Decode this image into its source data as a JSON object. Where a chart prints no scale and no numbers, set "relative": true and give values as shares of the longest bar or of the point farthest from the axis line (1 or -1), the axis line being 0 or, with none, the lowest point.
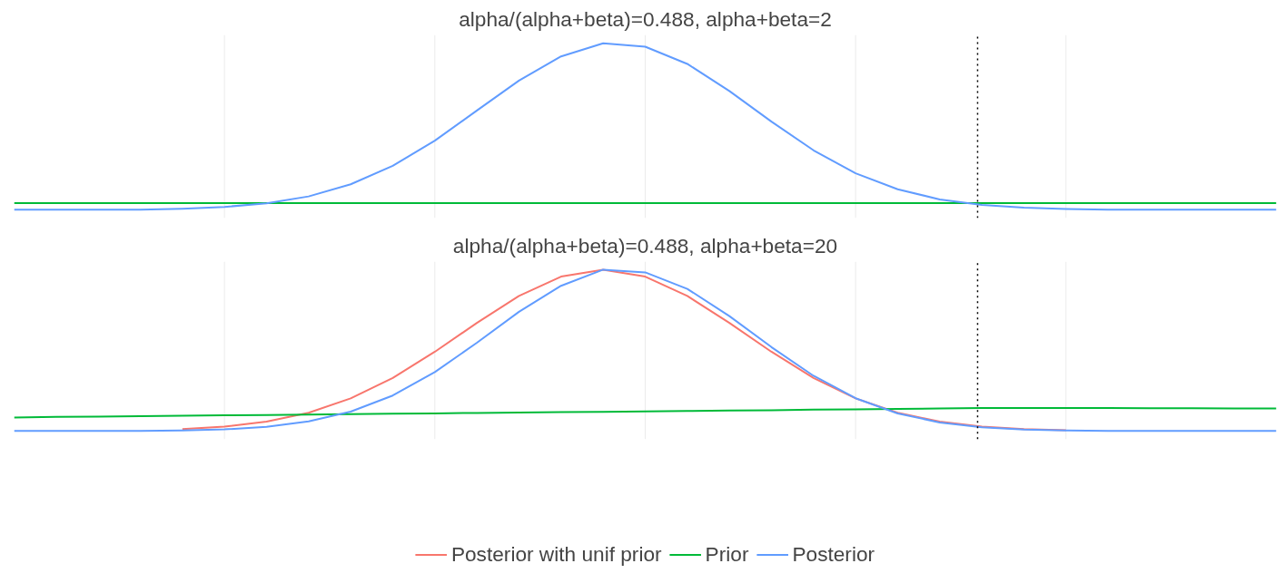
{
  "chart_data": [
    {
      "type": "line",
      "title": "alpha/(alpha+beta)=0.488, alpha+beta=2",
      "relative": true,
      "grid": "x",
      "legend": false,
      "tick_labels": false,
      "categories": [
        null,
        null,
        null,
        null,
        null,
        null,
        null,
        null,
        null,
        null,
        null,
        null,
        null,
        null,
        null,
        null,
        null,
        null,
        null,
        null,
        null,
        null,
        null,
        null,
        null,
        null,
        null,
        null,
        null,
        null,
        null
      ],
      "series": [
        {
          "color": "#00ba38",
          "values": [
            0.04,
            0.04,
            0.04,
            0.04,
            0.04,
            0.04,
            0.04,
            0.04,
            0.04,
            0.04,
            0.04,
            0.04,
            0.04,
            0.04,
            0.04,
            0.04,
            0.04,
            0.04,
            0.04,
            0.04,
            0.04,
            0.04,
            0.04,
            0.04,
            0.04,
            0.04,
            0.04,
            0.04,
            0.04,
            0.04,
            0.04
          ]
        },
        {
          "color": "#619cff",
          "values": [
            0,
            0,
            0,
            0,
            0.006,
            0.017,
            0.038,
            0.08,
            0.153,
            0.264,
            0.415,
            0.596,
            0.776,
            0.921,
            1,
            0.979,
            0.876,
            0.713,
            0.529,
            0.357,
            0.219,
            0.123,
            0.062,
            0.029,
            0.012,
            0.004,
            0.001,
            0,
            0,
            0,
            0
          ]
        }
      ]
    },
    {
      "type": "line",
      "title": "alpha/(alpha+beta)=0.488, alpha+beta=20",
      "relative": true,
      "grid": "x",
      "legend": "bottom",
      "tick_labels": false,
      "categories": [
        null,
        null,
        null,
        null,
        null,
        null,
        null,
        null,
        null,
        null,
        null,
        null,
        null,
        null,
        null,
        null,
        null,
        null,
        null,
        null,
        null,
        null,
        null,
        null,
        null,
        null,
        null,
        null,
        null,
        null,
        null
      ],
      "series": [
        {
          "name": "Posterior with unif prior",
          "color": "#f8766d",
          "values": [
            null,
            null,
            null,
            null,
            0.012,
            0.027,
            0.058,
            0.113,
            0.202,
            0.329,
            0.491,
            0.67,
            0.837,
            0.957,
            1,
            0.957,
            0.837,
            0.67,
            0.491,
            0.329,
            0.202,
            0.113,
            0.058,
            0.027,
            0.012,
            0.005,
            null,
            null,
            null,
            null,
            null
          ]
        },
        {
          "name": "Prior",
          "color": "#00ba38",
          "values": [
            0.084,
            0.087,
            0.089,
            0.092,
            0.094,
            0.097,
            0.099,
            0.102,
            0.104,
            0.107,
            0.109,
            0.112,
            0.114,
            0.117,
            0.119,
            0.122,
            0.124,
            0.127,
            0.129,
            0.132,
            0.134,
            0.137,
            0.139,
            0.142,
            0.142,
            0.142,
            0.142,
            0.141,
            0.141,
            0.14,
            0.14
          ]
        },
        {
          "name": "Posterior",
          "color": "#619cff",
          "values": [
            0,
            0,
            0,
            0,
            0.003,
            0.01,
            0.026,
            0.059,
            0.12,
            0.22,
            0.365,
            0.547,
            0.739,
            0.9,
            1,
            0.983,
            0.881,
            0.712,
            0.52,
            0.342,
            0.203,
            0.109,
            0.053,
            0.023,
            0.009,
            0.003,
            0.001,
            0,
            0,
            0,
            0
          ]
        }
      ]
    }
  ]
}
